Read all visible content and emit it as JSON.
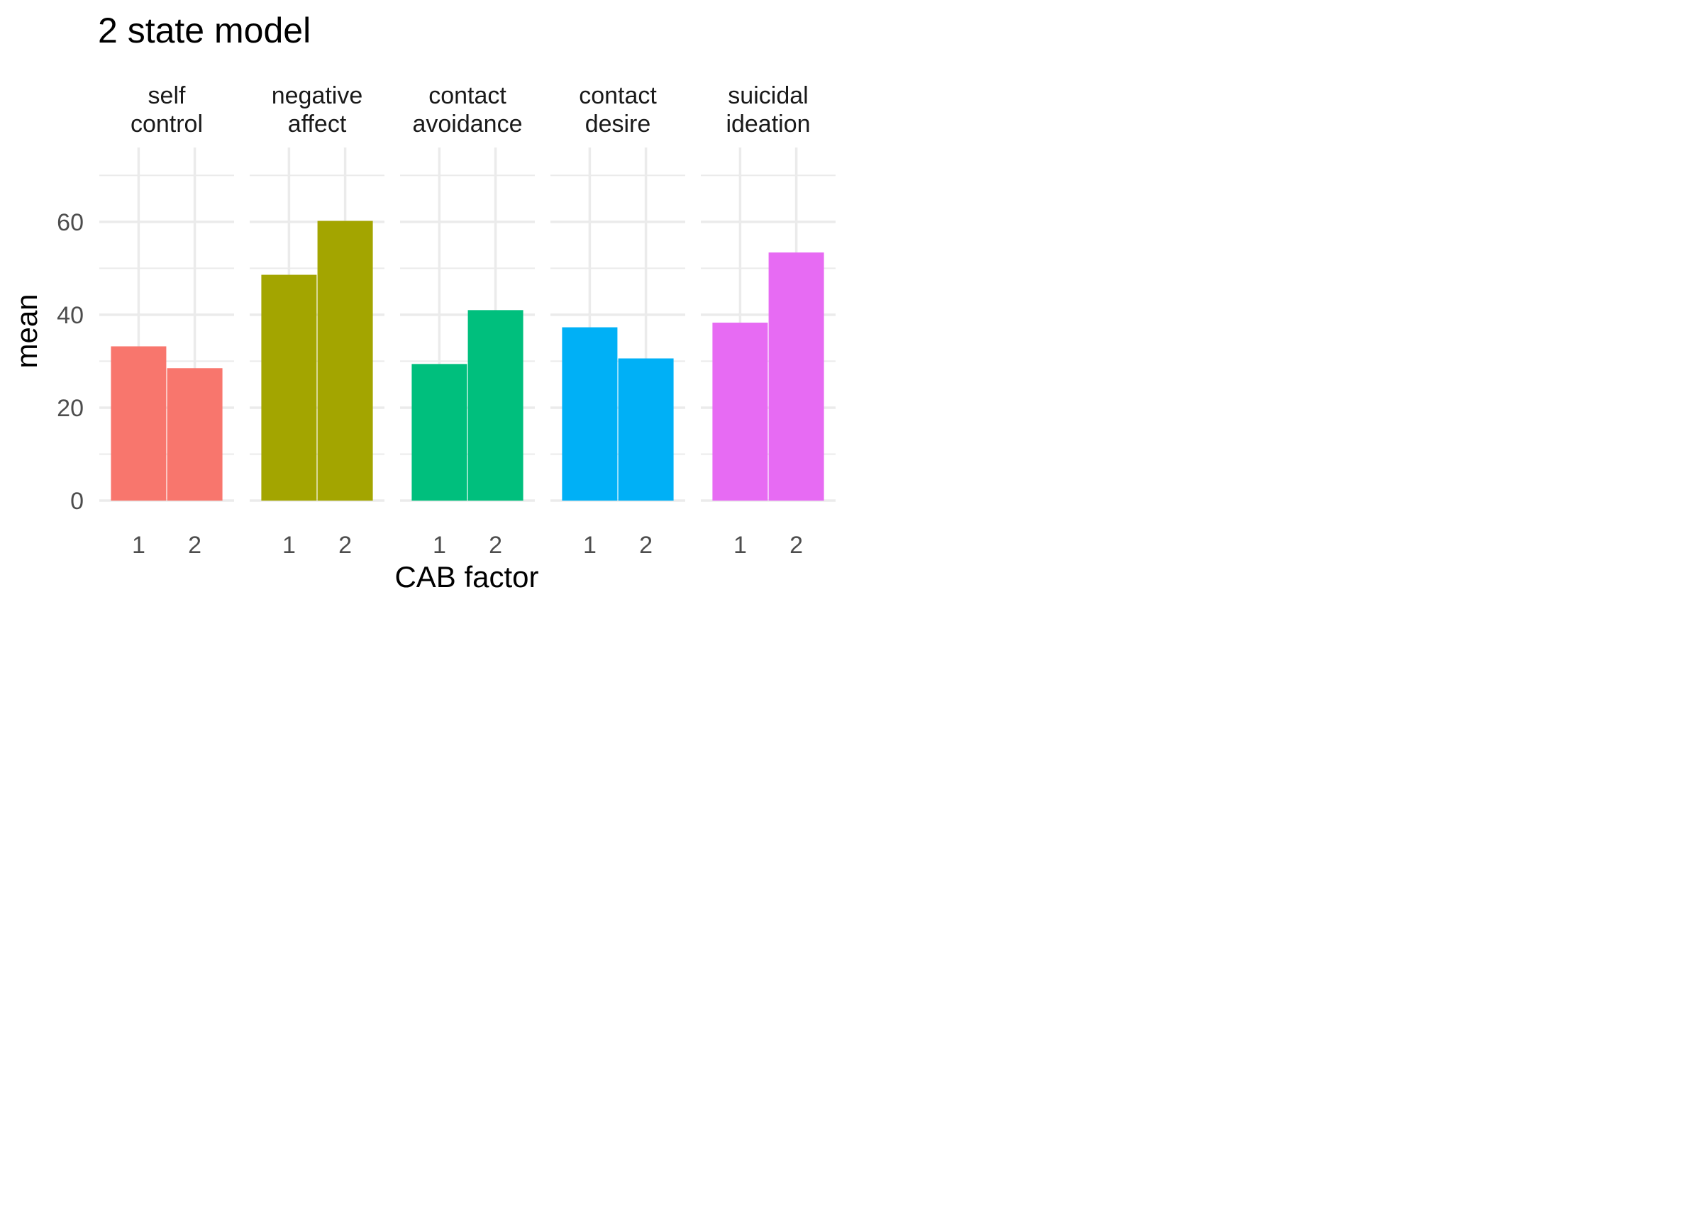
{
  "chart_data": {
    "type": "bar",
    "title": "2 state model",
    "xlabel": "CAB factor",
    "ylabel": "mean",
    "ylim": [
      0,
      76
    ],
    "yticks": [
      0,
      20,
      40,
      60
    ],
    "grid": true,
    "legend": "none",
    "categories": [
      "1",
      "2"
    ],
    "facets": [
      {
        "label": [
          "self",
          "control"
        ],
        "color": "#F8766D",
        "values": [
          33.2,
          28.5
        ]
      },
      {
        "label": [
          "negative",
          "affect"
        ],
        "color": "#A3A500",
        "values": [
          48.6,
          60.2
        ]
      },
      {
        "label": [
          "contact",
          "avoidance"
        ],
        "color": "#00BF7D",
        "values": [
          29.4,
          41.0
        ]
      },
      {
        "label": [
          "contact",
          "desire"
        ],
        "color": "#00B0F6",
        "values": [
          37.3,
          30.6
        ]
      },
      {
        "label": [
          "suicidal",
          "ideation"
        ],
        "color": "#E76BF3",
        "values": [
          38.3,
          53.4
        ]
      }
    ]
  }
}
